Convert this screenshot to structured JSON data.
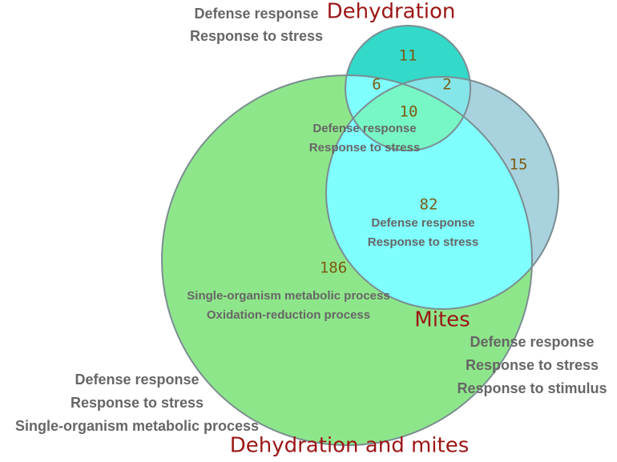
{
  "sets": [
    {
      "name": "Dehydration"
    },
    {
      "name": "Mites"
    },
    {
      "name": "Dehydration and mites"
    }
  ],
  "regions": [
    {
      "count": "11"
    },
    {
      "count": "6"
    },
    {
      "count": "2"
    },
    {
      "count": "10"
    },
    {
      "count": "15"
    },
    {
      "count": "82"
    },
    {
      "count": "186"
    }
  ],
  "annotations": [
    {
      "lines": [
        "Defense response",
        "Response to stress"
      ]
    },
    {
      "lines": [
        "Defense response",
        "Response to stress"
      ]
    },
    {
      "lines": [
        "Defense response",
        "Response to stress"
      ]
    },
    {
      "lines": [
        "Single-organism metabolic process",
        "Oxidation-reduction process"
      ]
    },
    {
      "lines": [
        "Defense response",
        "Response to stress",
        "Response to stimulus"
      ]
    },
    {
      "lines": [
        "Defense response",
        "Response to stress",
        "Single-organism metabolic process"
      ]
    }
  ]
}
